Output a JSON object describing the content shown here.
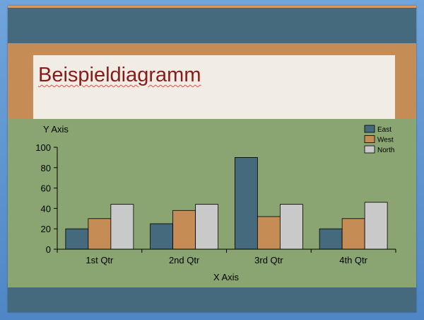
{
  "slide": {
    "title": "Beispieldiagramm"
  },
  "colors": {
    "slide_background": "#8aa571",
    "band": "#45697d",
    "accent_orange": "#c58c55",
    "title_box": "#f1ede5",
    "title_text": "#8b1a1a"
  },
  "chart_data": {
    "type": "bar",
    "categories": [
      "1st Qtr",
      "2nd Qtr",
      "3rd Qtr",
      "4th Qtr"
    ],
    "series": [
      {
        "name": "East",
        "color": "#45697d",
        "values": [
          20,
          25,
          90,
          20
        ]
      },
      {
        "name": "West",
        "color": "#c58c55",
        "values": [
          30,
          38,
          32,
          30
        ]
      },
      {
        "name": "North",
        "color": "#c9c9c9",
        "values": [
          44,
          44,
          44,
          46
        ]
      }
    ],
    "xlabel": "X Axis",
    "ylabel": "Y Axis",
    "ylim": [
      0,
      100
    ],
    "yticks": [
      0,
      20,
      40,
      60,
      80,
      100
    ],
    "legend_position": "top-right",
    "grid": false
  }
}
